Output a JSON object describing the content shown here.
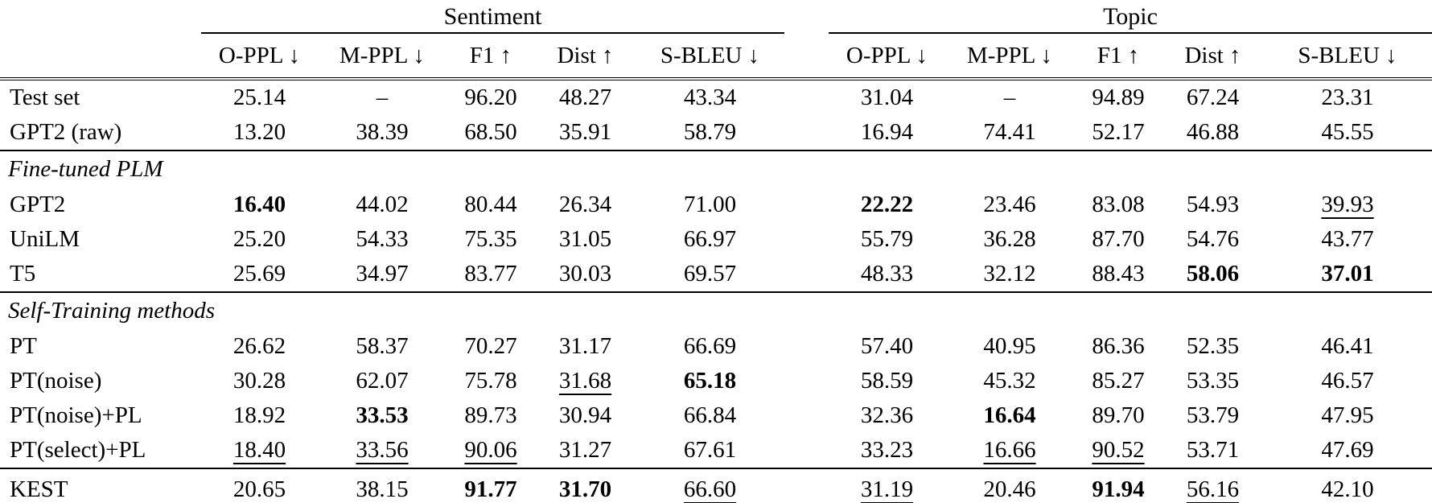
{
  "colors": {
    "background": "#ffffff",
    "text": "#000000",
    "rule": "#000000"
  },
  "table": {
    "groups": [
      {
        "label": "Sentiment"
      },
      {
        "label": "Topic"
      }
    ],
    "columns": [
      "O-PPL ↓",
      "M-PPL ↓",
      "F1 ↑",
      "Dist ↑",
      "S-BLEU ↓"
    ],
    "rows": [
      {
        "type": "data",
        "label": "Test set",
        "cells": [
          "25.14",
          "–",
          "96.20",
          "48.27",
          "43.34",
          "31.04",
          "–",
          "94.89",
          "67.24",
          "23.31"
        ]
      },
      {
        "type": "data",
        "label": "GPT2 (raw)",
        "rule_below": true,
        "cells": [
          "13.20",
          "38.39",
          "68.50",
          "35.91",
          "58.79",
          "16.94",
          "74.41",
          "52.17",
          "46.88",
          "45.55"
        ]
      },
      {
        "type": "section",
        "label": "Fine-tuned PLM"
      },
      {
        "type": "data",
        "label": "GPT2",
        "cells": [
          {
            "v": "16.40",
            "f": "b"
          },
          "44.02",
          "80.44",
          "26.34",
          "71.00",
          {
            "v": "22.22",
            "f": "b"
          },
          "23.46",
          "83.08",
          "54.93",
          {
            "v": "39.93",
            "f": "u"
          }
        ]
      },
      {
        "type": "data",
        "label": "UniLM",
        "cells": [
          "25.20",
          "54.33",
          "75.35",
          "31.05",
          "66.97",
          "55.79",
          "36.28",
          "87.70",
          "54.76",
          "43.77"
        ]
      },
      {
        "type": "data",
        "label": "T5",
        "rule_below": true,
        "cells": [
          "25.69",
          "34.97",
          "83.77",
          "30.03",
          "69.57",
          "48.33",
          "32.12",
          "88.43",
          {
            "v": "58.06",
            "f": "b"
          },
          {
            "v": "37.01",
            "f": "b"
          }
        ]
      },
      {
        "type": "section",
        "label": "Self-Training methods"
      },
      {
        "type": "data",
        "label": "PT",
        "cells": [
          "26.62",
          "58.37",
          "70.27",
          "31.17",
          "66.69",
          "57.40",
          "40.95",
          "86.36",
          "52.35",
          "46.41"
        ]
      },
      {
        "type": "data",
        "label": "PT(noise)",
        "cells": [
          "30.28",
          "62.07",
          "75.78",
          {
            "v": "31.68",
            "f": "u"
          },
          {
            "v": "65.18",
            "f": "b"
          },
          "58.59",
          "45.32",
          "85.27",
          "53.35",
          "46.57"
        ]
      },
      {
        "type": "data",
        "label": "PT(noise)+PL",
        "cells": [
          "18.92",
          {
            "v": "33.53",
            "f": "b"
          },
          "89.73",
          "30.94",
          "66.84",
          "32.36",
          {
            "v": "16.64",
            "f": "b"
          },
          "89.70",
          "53.79",
          "47.95"
        ]
      },
      {
        "type": "data",
        "label": "PT(select)+PL",
        "rule_below": true,
        "cells": [
          {
            "v": "18.40",
            "f": "u"
          },
          {
            "v": "33.56",
            "f": "u"
          },
          {
            "v": "90.06",
            "f": "u"
          },
          "31.27",
          "67.61",
          "33.23",
          {
            "v": "16.66",
            "f": "u"
          },
          {
            "v": "90.52",
            "f": "u"
          },
          "53.71",
          "47.69"
        ]
      },
      {
        "type": "data",
        "label": "KEST",
        "last": true,
        "cells": [
          "20.65",
          "38.15",
          {
            "v": "91.77",
            "f": "b"
          },
          {
            "v": "31.70",
            "f": "b"
          },
          {
            "v": "66.60",
            "f": "u"
          },
          {
            "v": "31.19",
            "f": "u"
          },
          "20.46",
          {
            "v": "91.94",
            "f": "b"
          },
          {
            "v": "56.16",
            "f": "u"
          },
          "42.10"
        ]
      }
    ]
  }
}
